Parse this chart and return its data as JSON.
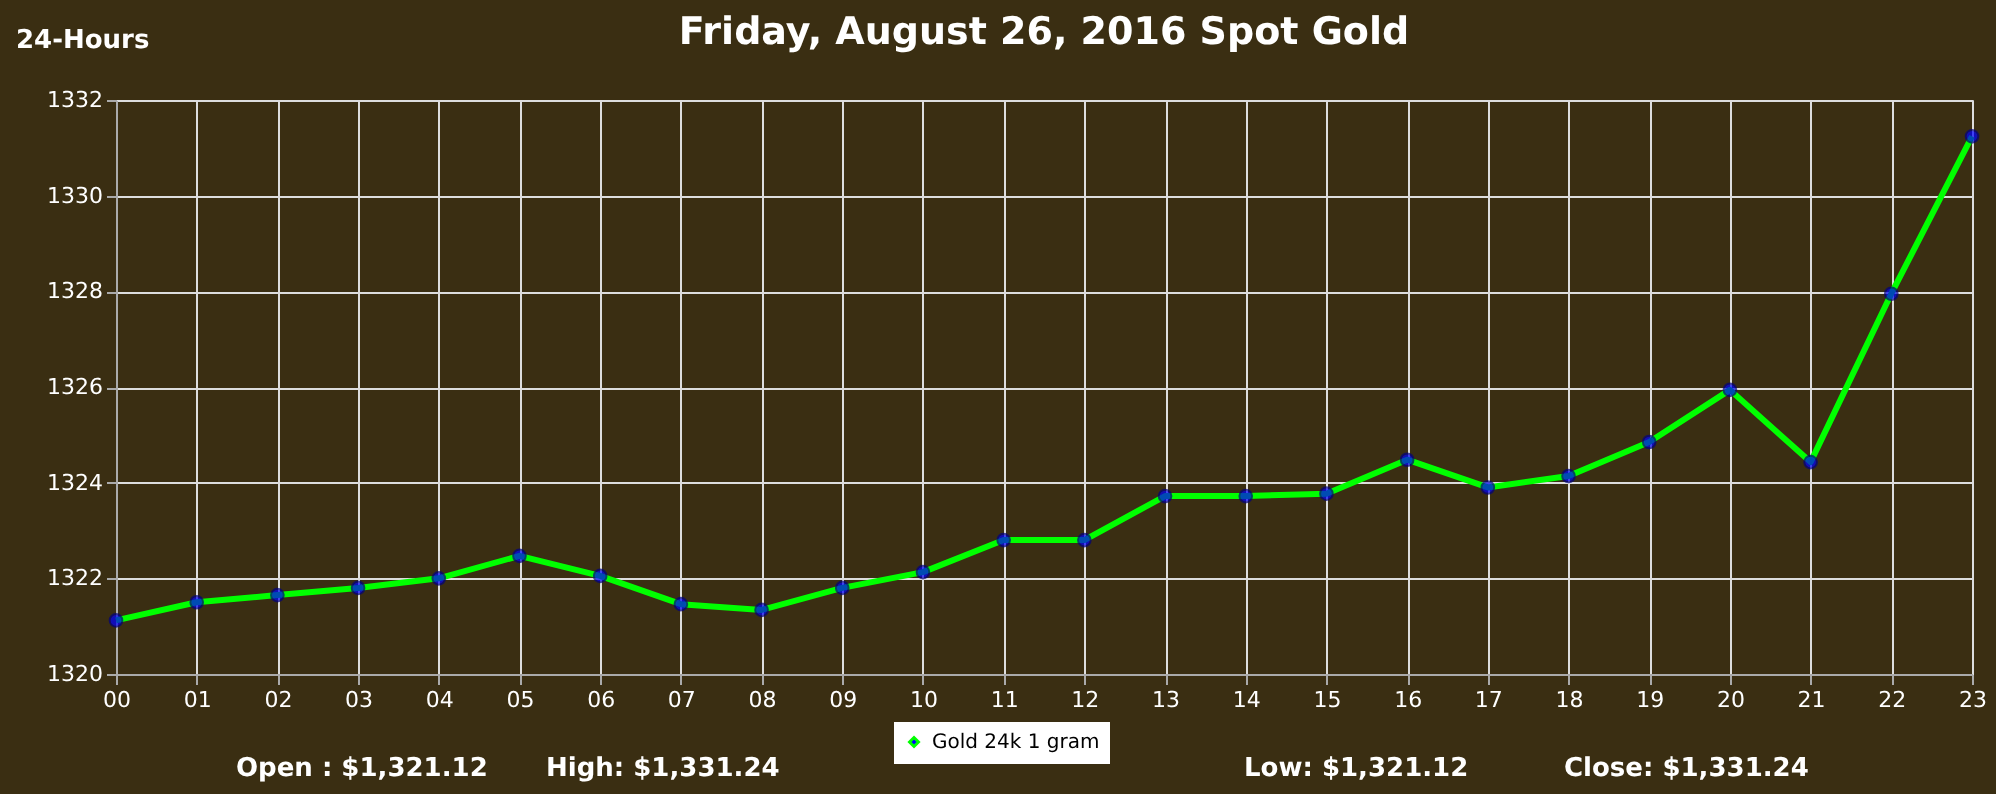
{
  "chart_data": {
    "type": "line",
    "title": "Friday, August 26, 2016 Spot Gold",
    "categories": [
      "00",
      "01",
      "02",
      "03",
      "04",
      "05",
      "06",
      "07",
      "08",
      "09",
      "10",
      "11",
      "12",
      "13",
      "14",
      "15",
      "16",
      "17",
      "18",
      "19",
      "20",
      "21",
      "22",
      "23"
    ],
    "series": [
      {
        "name": "Gold 24k 1 gram",
        "color": "#00ff00",
        "values": [
          1321.12,
          1321.5,
          1321.65,
          1321.8,
          1322.0,
          1322.47,
          1322.05,
          1321.46,
          1321.34,
          1321.8,
          1322.13,
          1322.8,
          1322.8,
          1323.72,
          1323.72,
          1323.77,
          1324.48,
          1323.9,
          1324.14,
          1324.85,
          1325.94,
          1324.43,
          1327.95,
          1331.24
        ]
      }
    ],
    "ylim": [
      1320,
      1332
    ],
    "yticks": [
      1320,
      1322,
      1324,
      1326,
      1328,
      1330,
      1332
    ],
    "grid": true,
    "legend": "bottom",
    "marker": "circle",
    "line_style": "solid",
    "annotations": [
      "24-Hours",
      "Open : $1,321.12",
      "High: $1,331.24",
      "Low: $1,321.12",
      "Close: $1,331.24"
    ]
  }
}
